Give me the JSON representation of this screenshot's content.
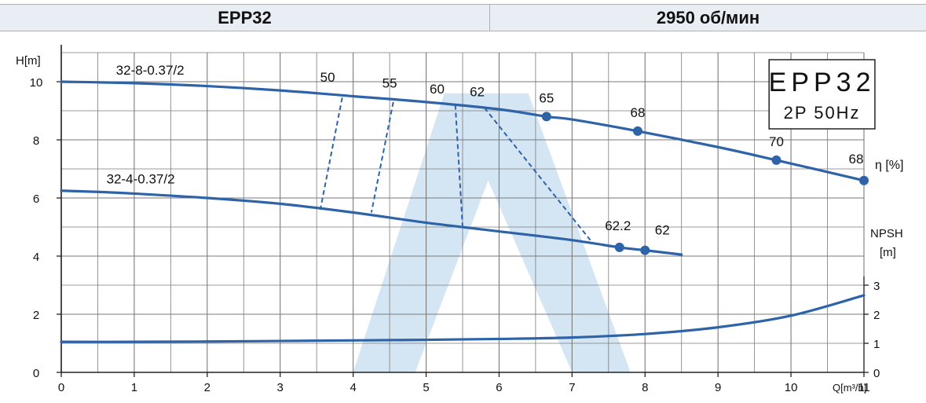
{
  "header": {
    "left_title": "EPP32",
    "right_title": "2950 об/мин"
  },
  "legend_box": {
    "line1": "EPP32",
    "line2": "2P  50Hz"
  },
  "chart_data": {
    "type": "line",
    "xlabel": "Q[m³/h]",
    "ylabel": "H[m]",
    "y2label": "NPSH [m]",
    "xlim": [
      0,
      11
    ],
    "ylim": [
      0,
      11
    ],
    "y2lim": [
      0,
      3
    ],
    "x_ticks": [
      0,
      1,
      2,
      3,
      4,
      5,
      6,
      7,
      8,
      9,
      10,
      11
    ],
    "y_ticks": [
      0,
      2,
      4,
      6,
      8,
      10
    ],
    "y2_ticks": [
      0,
      1,
      2,
      3
    ],
    "grid": true,
    "series": [
      {
        "name": "32-8-0.37/2",
        "axis": "H",
        "color": "#2e63a8",
        "x": [
          0,
          1,
          2,
          3,
          4,
          5,
          6,
          6.65,
          7,
          7.9,
          9,
          9.8,
          11
        ],
        "y": [
          10,
          9.95,
          9.85,
          9.7,
          9.5,
          9.3,
          9.05,
          8.8,
          8.7,
          8.3,
          7.75,
          7.3,
          6.6
        ]
      },
      {
        "name": "32-4-0.37/2",
        "axis": "H",
        "color": "#2e63a8",
        "x": [
          0,
          0.6,
          1,
          2,
          3,
          4,
          5,
          6,
          7,
          7.65,
          8,
          8.5
        ],
        "y": [
          6.25,
          6.2,
          6.15,
          6.0,
          5.8,
          5.5,
          5.15,
          4.85,
          4.55,
          4.3,
          4.2,
          4.05
        ]
      },
      {
        "name": "NPSH",
        "axis": "NPSH",
        "color": "#2e63a8",
        "x": [
          0,
          1,
          2,
          3,
          4,
          5,
          6,
          7,
          8,
          9,
          10,
          11
        ],
        "y": [
          1.05,
          1.05,
          1.06,
          1.08,
          1.1,
          1.12,
          1.15,
          1.2,
          1.32,
          1.55,
          1.95,
          2.65
        ]
      }
    ],
    "efficiency_points": {
      "upper": [
        {
          "x": 6.65,
          "y": 8.8,
          "label": "65"
        },
        {
          "x": 7.9,
          "y": 8.3,
          "label": "68"
        },
        {
          "x": 9.8,
          "y": 7.3,
          "label": "70"
        },
        {
          "x": 11,
          "y": 6.6,
          "label": "68"
        }
      ],
      "lower": [
        {
          "x": 7.65,
          "y": 4.3,
          "label": "62.2"
        },
        {
          "x": 8.0,
          "y": 4.2,
          "label": "62"
        }
      ]
    },
    "iso_efficiency_lines": [
      {
        "label": "50",
        "x1": 3.85,
        "y1": 9.45,
        "x2": 3.55,
        "y2": 5.6
      },
      {
        "label": "55",
        "x1": 4.55,
        "y1": 9.3,
        "x2": 4.25,
        "y2": 5.5
      },
      {
        "label": "60",
        "x1": 5.4,
        "y1": 9.2,
        "x2": 5.5,
        "y2": 5.0
      },
      {
        "label": "62",
        "x1": 5.8,
        "y1": 9.1,
        "x2": 7.25,
        "y2": 4.55
      }
    ],
    "eta_label": "η [%]",
    "y2_unit_top": "NPSH",
    "y2_unit_bottom": "[m]"
  }
}
